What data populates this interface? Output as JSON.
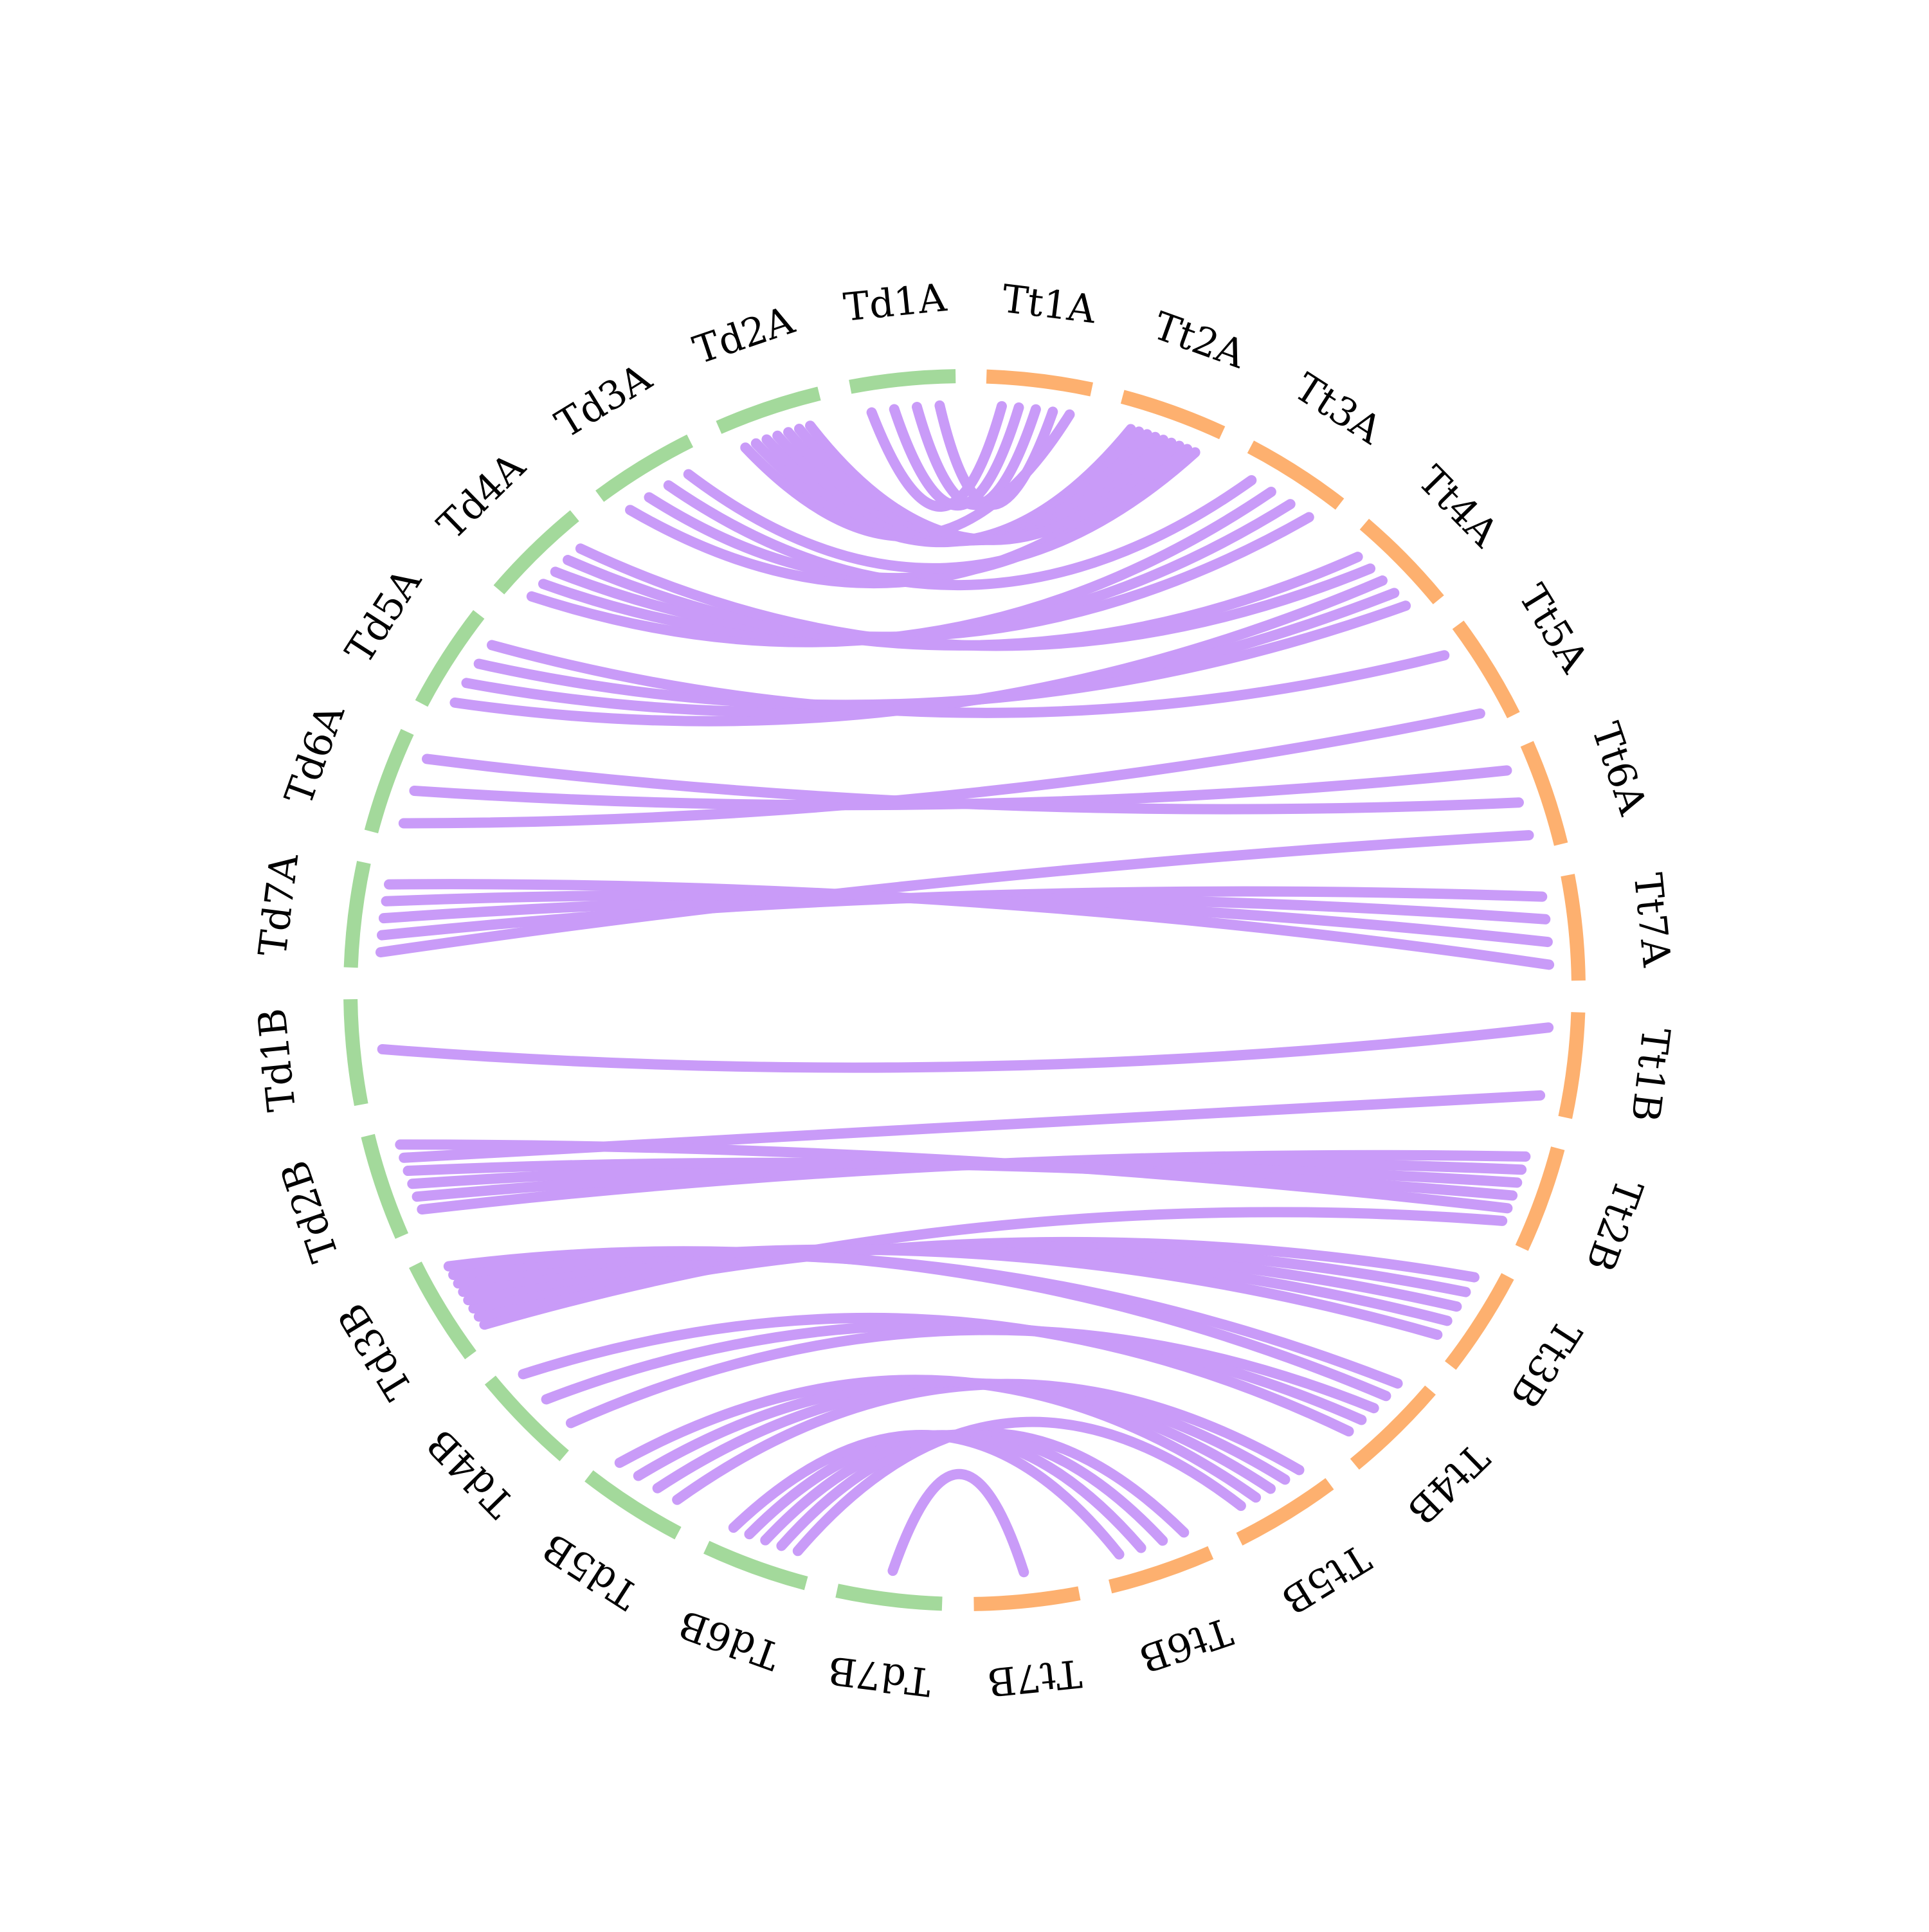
{
  "colors": {
    "genome_td": "#a3d99b",
    "genome_tt": "#fdb06f",
    "link": "#c99bf8",
    "background": "#ffffff",
    "label": "#000000"
  },
  "chromosomes": [
    {
      "id": "Tt1A",
      "label": "Tt1A",
      "genome": "tt"
    },
    {
      "id": "Tt2A",
      "label": "Tt2A",
      "genome": "tt"
    },
    {
      "id": "Tt3A",
      "label": "Tt3A",
      "genome": "tt"
    },
    {
      "id": "Tt4A",
      "label": "Tt4A",
      "genome": "tt"
    },
    {
      "id": "Tt5A",
      "label": "Tt5A",
      "genome": "tt"
    },
    {
      "id": "Tt6A",
      "label": "Tt6A",
      "genome": "tt"
    },
    {
      "id": "Tt7A",
      "label": "Tt7A",
      "genome": "tt"
    },
    {
      "id": "Tt1B",
      "label": "Tt1B",
      "genome": "tt"
    },
    {
      "id": "Tt2B",
      "label": "Tt2B",
      "genome": "tt"
    },
    {
      "id": "Tt3B",
      "label": "Tt3B",
      "genome": "tt"
    },
    {
      "id": "Tt4B",
      "label": "Tt4B",
      "genome": "tt"
    },
    {
      "id": "Tt5B",
      "label": "Tt5B",
      "genome": "tt"
    },
    {
      "id": "Tt6B",
      "label": "Tt6B",
      "genome": "tt"
    },
    {
      "id": "Tt7B",
      "label": "Tt7B",
      "genome": "tt"
    },
    {
      "id": "Td7B",
      "label": "Td7B",
      "genome": "td"
    },
    {
      "id": "Td6B",
      "label": "Td6B",
      "genome": "td"
    },
    {
      "id": "Td5B",
      "label": "Td5B",
      "genome": "td"
    },
    {
      "id": "Td4B",
      "label": "Td4B",
      "genome": "td"
    },
    {
      "id": "Td3B",
      "label": "Td3B",
      "genome": "td"
    },
    {
      "id": "Td2B",
      "label": "Td2B",
      "genome": "td"
    },
    {
      "id": "Td1B",
      "label": "Td1B",
      "genome": "td"
    },
    {
      "id": "Td7A",
      "label": "Td7A",
      "genome": "td"
    },
    {
      "id": "Td6A",
      "label": "Td6A",
      "genome": "td"
    },
    {
      "id": "Td5A",
      "label": "Td5A",
      "genome": "td"
    },
    {
      "id": "Td4A",
      "label": "Td4A",
      "genome": "td"
    },
    {
      "id": "Td3A",
      "label": "Td3A",
      "genome": "td"
    },
    {
      "id": "Td2A",
      "label": "Td2A",
      "genome": "td"
    },
    {
      "id": "Td1A",
      "label": "Td1A",
      "genome": "td"
    }
  ],
  "links": [
    {
      "source": "Td1A",
      "target": "Tt1A"
    },
    {
      "source": "Td1A",
      "target": "Tt1A"
    },
    {
      "source": "Td1A",
      "target": "Tt1A"
    },
    {
      "source": "Td1A",
      "target": "Tt1A"
    },
    {
      "source": "Td2A",
      "target": "Tt1A"
    },
    {
      "source": "Td2A",
      "target": "Tt2A"
    },
    {
      "source": "Td2A",
      "target": "Tt2A"
    },
    {
      "source": "Td2A",
      "target": "Tt2A"
    },
    {
      "source": "Td2A",
      "target": "Tt2A"
    },
    {
      "source": "Td2A",
      "target": "Tt2A"
    },
    {
      "source": "Td2A",
      "target": "Tt2A"
    },
    {
      "source": "Td3A",
      "target": "Tt2A"
    },
    {
      "source": "Td3A",
      "target": "Tt2A"
    },
    {
      "source": "Td3A",
      "target": "Tt3A"
    },
    {
      "source": "Td3A",
      "target": "Tt2A"
    },
    {
      "source": "Td4A",
      "target": "Tt3A"
    },
    {
      "source": "Td4A",
      "target": "Tt3A"
    },
    {
      "source": "Td4A",
      "target": "Tt3A"
    },
    {
      "source": "Td4A",
      "target": "Tt4A"
    },
    {
      "source": "Td4A",
      "target": "Tt4A"
    },
    {
      "source": "Td5A",
      "target": "Tt4A"
    },
    {
      "source": "Td5A",
      "target": "Tt4A"
    },
    {
      "source": "Td5A",
      "target": "Tt4A"
    },
    {
      "source": "Td5A",
      "target": "Tt5A"
    },
    {
      "source": "Td6A",
      "target": "Tt5A"
    },
    {
      "source": "Td6A",
      "target": "Tt6A"
    },
    {
      "source": "Td6A",
      "target": "Tt6A"
    },
    {
      "source": "Td7A",
      "target": "Tt6A"
    },
    {
      "source": "Td7A",
      "target": "Tt7A"
    },
    {
      "source": "Td7A",
      "target": "Tt7A"
    },
    {
      "source": "Td7A",
      "target": "Tt7A"
    },
    {
      "source": "Td7A",
      "target": "Tt7A"
    },
    {
      "source": "Td1B",
      "target": "Tt1B"
    },
    {
      "source": "Td2B",
      "target": "Tt2B"
    },
    {
      "source": "Td2B",
      "target": "Tt2B"
    },
    {
      "source": "Td2B",
      "target": "Tt2B"
    },
    {
      "source": "Td2B",
      "target": "Tt2B"
    },
    {
      "source": "Td2B",
      "target": "Tt1B"
    },
    {
      "source": "Td2B",
      "target": "Tt2B"
    },
    {
      "source": "Td3B",
      "target": "Tt2B"
    },
    {
      "source": "Td3B",
      "target": "Tt3B"
    },
    {
      "source": "Td3B",
      "target": "Tt3B"
    },
    {
      "source": "Td3B",
      "target": "Tt3B"
    },
    {
      "source": "Td3B",
      "target": "Tt3B"
    },
    {
      "source": "Td3B",
      "target": "Tt3B"
    },
    {
      "source": "Td3B",
      "target": "Tt4B"
    },
    {
      "source": "Td3B",
      "target": "Tt4B"
    },
    {
      "source": "Td4B",
      "target": "Tt4B"
    },
    {
      "source": "Td4B",
      "target": "Tt4B"
    },
    {
      "source": "Td4B",
      "target": "Tt4B"
    },
    {
      "source": "Td5B",
      "target": "Tt5B"
    },
    {
      "source": "Td5B",
      "target": "Tt5B"
    },
    {
      "source": "Td5B",
      "target": "Tt5B"
    },
    {
      "source": "Td5B",
      "target": "Tt5B"
    },
    {
      "source": "Td6B",
      "target": "Tt5B"
    },
    {
      "source": "Td6B",
      "target": "Tt6B"
    },
    {
      "source": "Td6B",
      "target": "Tt6B"
    },
    {
      "source": "Td6B",
      "target": "Tt6B"
    },
    {
      "source": "Td6B",
      "target": "Tt6B"
    },
    {
      "source": "Td7B",
      "target": "Tt7B"
    }
  ]
}
